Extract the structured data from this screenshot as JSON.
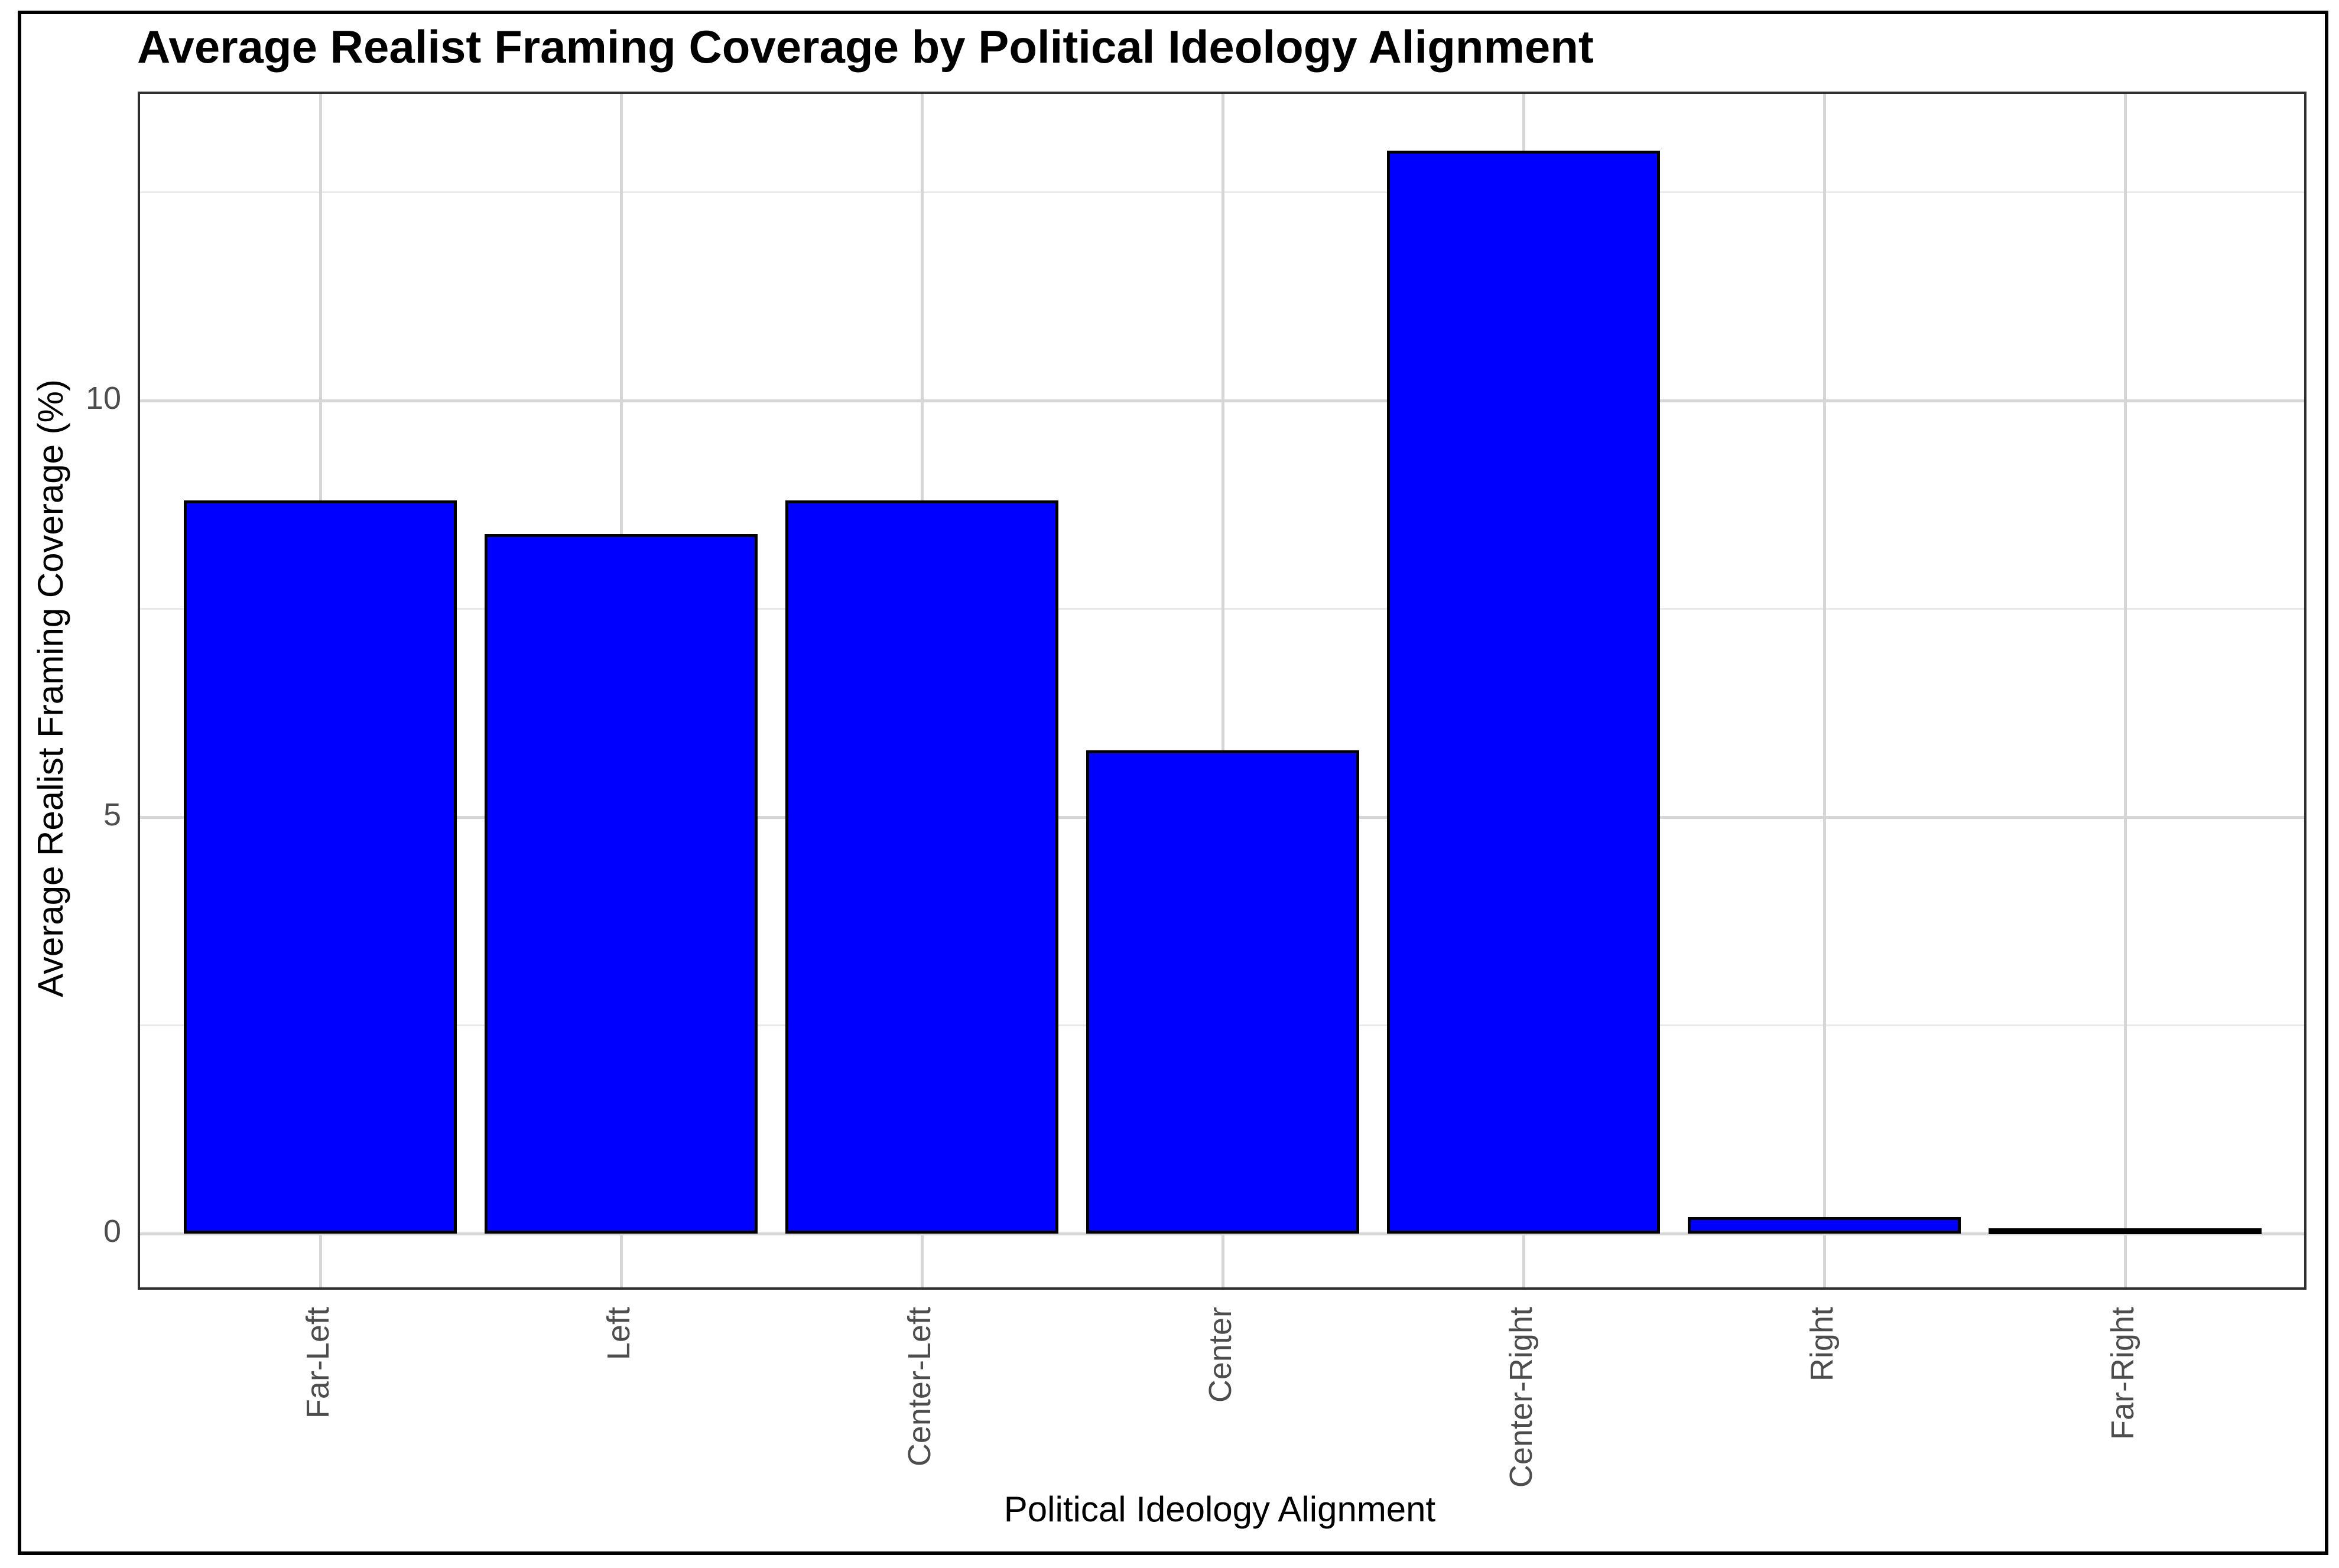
{
  "title": "Average Realist Framing Coverage by Political Ideology Alignment",
  "chart_data": {
    "type": "bar",
    "title": "Average Realist Framing Coverage by Political Ideology Alignment",
    "xlabel": "Political Ideology Alignment",
    "ylabel": "Average Realist Framing Coverage (%)",
    "categories": [
      "Far-Left",
      "Left",
      "Center-Left",
      "Center",
      "Center-Right",
      "Right",
      "Far-Right"
    ],
    "values": [
      8.8,
      8.4,
      8.8,
      5.8,
      13.0,
      0.2,
      0.0
    ],
    "y_ticks": [
      0,
      5,
      10
    ],
    "y_tick_labels": [
      "0",
      "5",
      "10"
    ],
    "y_minor_ticks": [
      2.5,
      7.5,
      12.5
    ],
    "ylim": [
      -0.65,
      13.7
    ],
    "grid": true,
    "legend": false,
    "bar_fill_color": "#0000ff",
    "bar_border_color": "#000000",
    "grid_major_color": "#d6d6d6",
    "grid_minor_color": "#e9e9e9",
    "panel_border_color": "#2f2f2f",
    "tick_label_color": "#4d4d4d",
    "title_color": "#000000",
    "axis_title_color": "#000000",
    "background_color": "#ffffff"
  }
}
